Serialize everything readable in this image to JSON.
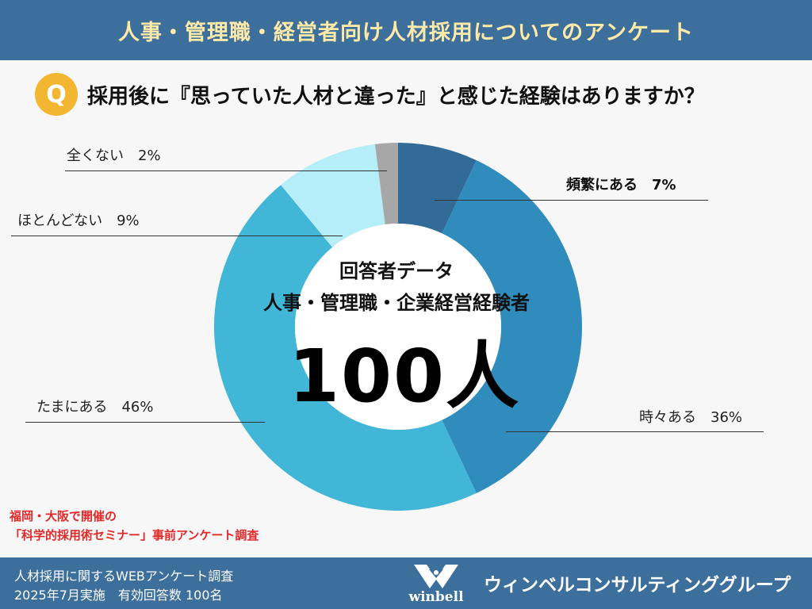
{
  "header": {
    "title": "人事・管理職・経営者向け人材採用についてのアンケート"
  },
  "question": {
    "badge": "Q",
    "text": "採用後に『思っていた人材と違った』と感じた経験はありますか？"
  },
  "center": {
    "line1": "回答者データ",
    "line2": "人事・管理職・企業経営経験者",
    "count": "100人"
  },
  "chart_data": {
    "type": "pie",
    "donut": true,
    "categories": [
      "頻繁にある",
      "時々ある",
      "たまにある",
      "ほとんどない",
      "全くない"
    ],
    "values": [
      7,
      36,
      46,
      9,
      2
    ],
    "unit": "%",
    "colors": [
      "#336b98",
      "#2f8cbd",
      "#42b6d6",
      "#b5eef8",
      "#a7a7a7"
    ],
    "labels": [
      "頻繁にある　7%",
      "時々ある　36%",
      "たまにある　46%",
      "ほとんどない　9%",
      "全くない　2%"
    ]
  },
  "survey_note": {
    "line1": "福岡・大阪で開催の",
    "line2": "「科学的採用術セミナー」事前アンケート調査"
  },
  "footer": {
    "line1": "人材採用に関するWEBアンケート調査",
    "line2": "2025年7月実施　有効回答数 100名",
    "logo_text": "winbell",
    "company": "ウィンベルコンサルティンググループ"
  }
}
